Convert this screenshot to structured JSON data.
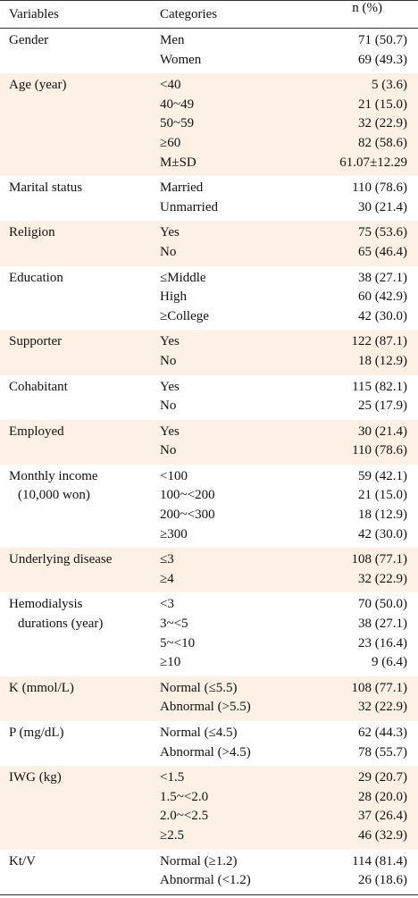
{
  "header": {
    "variables": "Variables",
    "categories": "Categories",
    "n": "n (%)"
  },
  "groups": [
    {
      "variable": [
        "Gender"
      ],
      "rows": [
        {
          "category": "Men",
          "n": "71 (50.7)"
        },
        {
          "category": "Women",
          "n": "69 (49.3)"
        }
      ]
    },
    {
      "variable": [
        "Age (year)"
      ],
      "rows": [
        {
          "category": "<40",
          "n": "5 (3.6)"
        },
        {
          "category": "40~49",
          "n": "21 (15.0)"
        },
        {
          "category": "50~59",
          "n": "32 (22.9)"
        },
        {
          "category": "≥60",
          "n": "82 (58.6)"
        },
        {
          "category": "M±SD",
          "n": "61.07±12.29"
        }
      ]
    },
    {
      "variable": [
        "Marital status"
      ],
      "rows": [
        {
          "category": "Married",
          "n": "110 (78.6)"
        },
        {
          "category": "Unmarried",
          "n": "30 (21.4)"
        }
      ]
    },
    {
      "variable": [
        "Religion"
      ],
      "rows": [
        {
          "category": "Yes",
          "n": "75 (53.6)"
        },
        {
          "category": "No",
          "n": "65 (46.4)"
        }
      ]
    },
    {
      "variable": [
        "Education"
      ],
      "rows": [
        {
          "category": "≤Middle",
          "n": "38 (27.1)"
        },
        {
          "category": "High",
          "n": "60 (42.9)"
        },
        {
          "category": "≥College",
          "n": "42 (30.0)"
        }
      ]
    },
    {
      "variable": [
        "Supporter"
      ],
      "rows": [
        {
          "category": "Yes",
          "n": "122 (87.1)"
        },
        {
          "category": "No",
          "n": "18 (12.9)"
        }
      ]
    },
    {
      "variable": [
        "Cohabitant"
      ],
      "rows": [
        {
          "category": "Yes",
          "n": "115 (82.1)"
        },
        {
          "category": "No",
          "n": "25 (17.9)"
        }
      ]
    },
    {
      "variable": [
        "Employed"
      ],
      "rows": [
        {
          "category": "Yes",
          "n": "30 (21.4)"
        },
        {
          "category": "No",
          "n": "110 (78.6)"
        }
      ]
    },
    {
      "variable": [
        "Monthly income",
        "(10,000 won)"
      ],
      "rows": [
        {
          "category": "<100",
          "n": "59 (42.1)"
        },
        {
          "category": "100~<200",
          "n": "21 (15.0)"
        },
        {
          "category": "200~<300",
          "n": "18 (12.9)"
        },
        {
          "category": "≥300",
          "n": "42 (30.0)"
        }
      ]
    },
    {
      "variable": [
        "Underlying disease"
      ],
      "rows": [
        {
          "category": "≤3",
          "n": "108 (77.1)"
        },
        {
          "category": "≥4",
          "n": "32 (22.9)"
        }
      ]
    },
    {
      "variable": [
        "Hemodialysis",
        "durations (year)"
      ],
      "rows": [
        {
          "category": "<3",
          "n": "70 (50.0)"
        },
        {
          "category": "3~<5",
          "n": "38 (27.1)"
        },
        {
          "category": "5~<10",
          "n": "23 (16.4)"
        },
        {
          "category": "≥10",
          "n": "9 (6.4)"
        }
      ]
    },
    {
      "variable": [
        "K (mmol/L)"
      ],
      "rows": [
        {
          "category": "Normal (≤5.5)",
          "n": "108 (77.1)"
        },
        {
          "category": "Abnormal (>5.5)",
          "n": "32 (22.9)"
        }
      ]
    },
    {
      "variable": [
        "P (mg/dL)"
      ],
      "rows": [
        {
          "category": "Normal (≤4.5)",
          "n": "62 (44.3)"
        },
        {
          "category": "Abnormal (>4.5)",
          "n": "78 (55.7)"
        }
      ]
    },
    {
      "variable": [
        "IWG (kg)"
      ],
      "rows": [
        {
          "category": "<1.5",
          "n": "29 (20.7)"
        },
        {
          "category": "1.5~<2.0",
          "n": "28 (20.0)"
        },
        {
          "category": "2.0~<2.5",
          "n": "37 (26.4)"
        },
        {
          "category": "≥2.5",
          "n": "46 (32.9)"
        }
      ]
    },
    {
      "variable": [
        "Kt/V"
      ],
      "rows": [
        {
          "category": "Normal (≥1.2)",
          "n": "114 (81.4)"
        },
        {
          "category": "Abnormal (<1.2)",
          "n": "26 (18.6)"
        }
      ]
    }
  ]
}
